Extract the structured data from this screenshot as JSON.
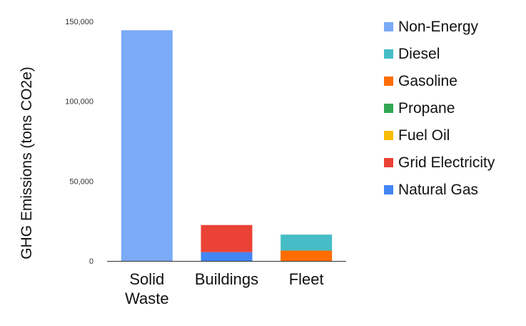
{
  "chart_data": {
    "type": "bar",
    "stacked": true,
    "title": "",
    "xlabel": "",
    "ylabel": "GHG Emissions (tons CO2e)",
    "ylim": [
      0,
      150000
    ],
    "yticks": [
      "0",
      "50,000",
      "100,000",
      "150,000"
    ],
    "ytick_values": [
      0,
      50000,
      100000,
      150000
    ],
    "grid": false,
    "legend_position": "right",
    "categories": [
      "Solid Waste",
      "Buildings",
      "Fleet"
    ],
    "category_lines": [
      [
        "Solid",
        "Waste"
      ],
      [
        "Buildings"
      ],
      [
        "Fleet"
      ]
    ],
    "series": [
      {
        "name": "Natural Gas",
        "color": "#4285f4",
        "values": [
          0,
          5500,
          0
        ]
      },
      {
        "name": "Grid Electricity",
        "color": "#ea4335",
        "values": [
          0,
          17000,
          0
        ]
      },
      {
        "name": "Fuel Oil",
        "color": "#fbbc04",
        "values": [
          0,
          0,
          0
        ]
      },
      {
        "name": "Propane",
        "color": "#34a853",
        "values": [
          0,
          0,
          0
        ]
      },
      {
        "name": "Gasoline",
        "color": "#ff6d01",
        "values": [
          0,
          0,
          6500
        ]
      },
      {
        "name": "Diesel",
        "color": "#46bdc6",
        "values": [
          0,
          0,
          10000
        ]
      },
      {
        "name": "Non-Energy",
        "color": "#7baaf7",
        "values": [
          144500,
          0,
          0
        ]
      }
    ],
    "legend_order": [
      "Non-Energy",
      "Diesel",
      "Gasoline",
      "Propane",
      "Fuel Oil",
      "Grid Electricity",
      "Natural Gas"
    ]
  }
}
